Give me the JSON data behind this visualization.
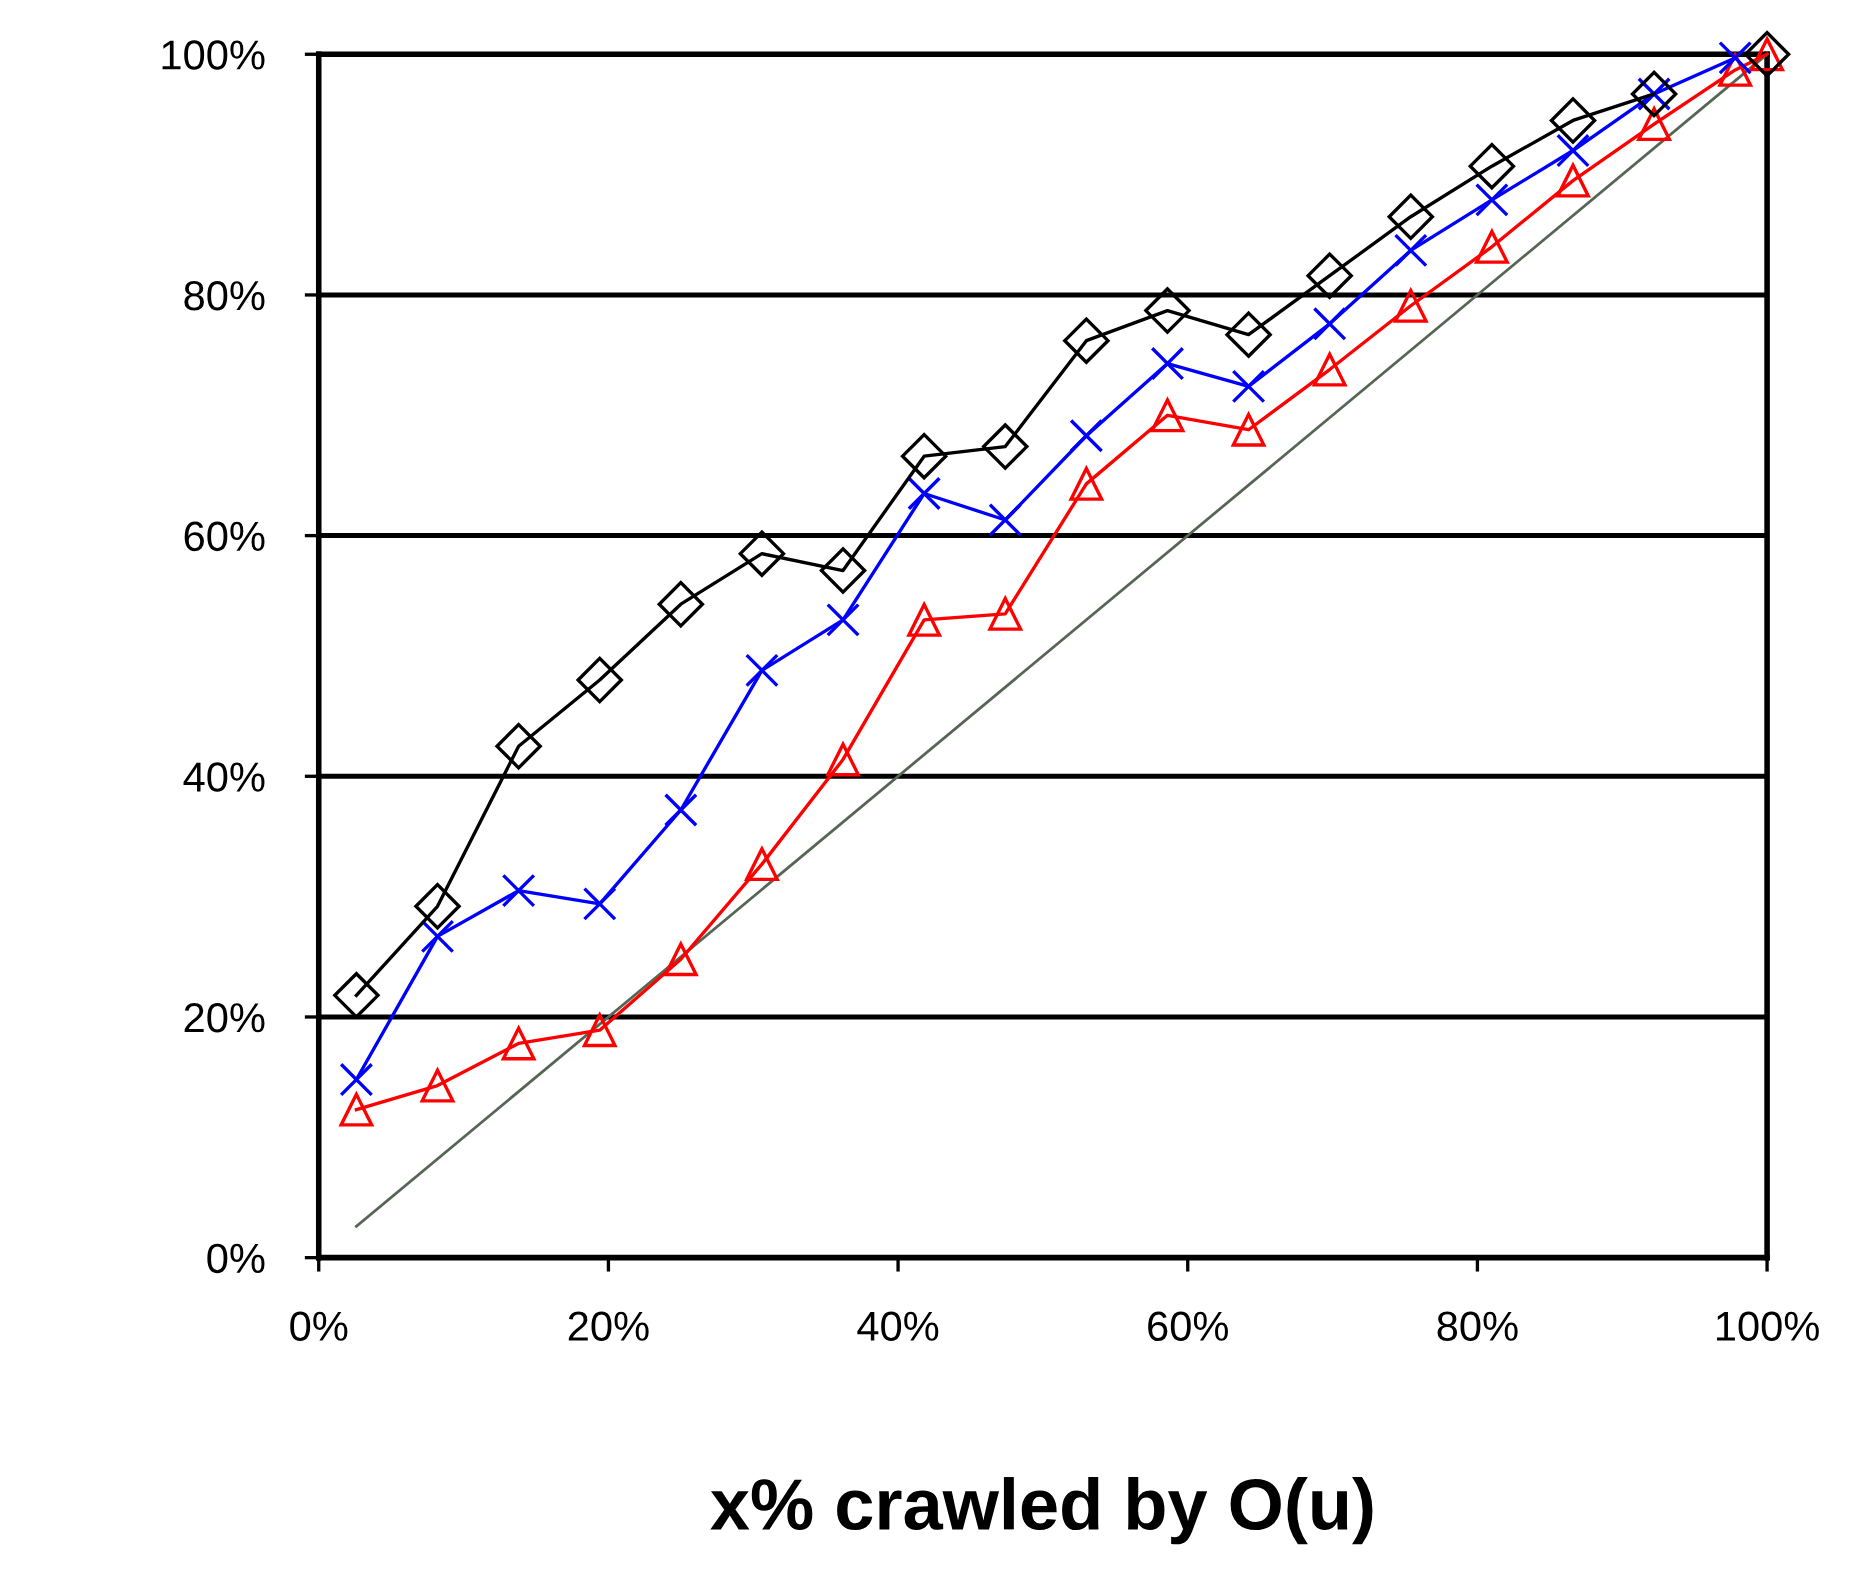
{
  "chart_data": {
    "type": "line",
    "xlabel": "x% crawled by O(u)",
    "xlim": [
      0,
      100
    ],
    "ylim": [
      0,
      100
    ],
    "xticks": [
      {
        "value": 0,
        "label": "0%"
      },
      {
        "value": 20,
        "label": "20%"
      },
      {
        "value": 40,
        "label": "40%"
      },
      {
        "value": 60,
        "label": "60%"
      },
      {
        "value": 80,
        "label": "80%"
      },
      {
        "value": 100,
        "label": "100%"
      }
    ],
    "yticks": [
      {
        "value": 0,
        "label": "0%"
      },
      {
        "value": 20,
        "label": "20%"
      },
      {
        "value": 40,
        "label": "40%"
      },
      {
        "value": 60,
        "label": "60%"
      },
      {
        "value": 80,
        "label": "80%"
      },
      {
        "value": 100,
        "label": "100%"
      }
    ],
    "grid": "y",
    "x": [
      2.6,
      8.2,
      13.8,
      19.4,
      25,
      30.6,
      36.2,
      41.8,
      47.4,
      53,
      58.6,
      64.2,
      69.8,
      75.4,
      81,
      86.6,
      92.2,
      97.8,
      100
    ],
    "series": [
      {
        "color": "#000000",
        "marker": "diamond",
        "values": [
          21.8,
          29.2,
          42.5,
          48,
          54.3,
          58.5,
          57.1,
          66.6,
          67.4,
          76.2,
          78.7,
          76.7,
          81.6,
          86.5,
          90.7,
          94.5,
          96.7,
          null,
          100
        ]
      },
      {
        "color": "#0000ff",
        "marker": "cross",
        "values": [
          14.8,
          26.7,
          30.5,
          29.4,
          37.2,
          48.8,
          53,
          63.5,
          61.3,
          68.3,
          74.3,
          72.4,
          77.6,
          83.7,
          87.9,
          92,
          96.7,
          99.7,
          null
        ]
      },
      {
        "color": "#ff0000",
        "marker": "triangle",
        "values": [
          12.3,
          14.3,
          17.8,
          18.9,
          24.8,
          32.7,
          41.4,
          53,
          53.5,
          64.3,
          70,
          68.8,
          73.8,
          79.1,
          84,
          89.5,
          94.2,
          98.7,
          100
        ]
      },
      {
        "color": "#556655",
        "marker": "none",
        "x": [
          2.6,
          100
        ],
        "values": [
          2.6,
          100
        ]
      }
    ]
  }
}
